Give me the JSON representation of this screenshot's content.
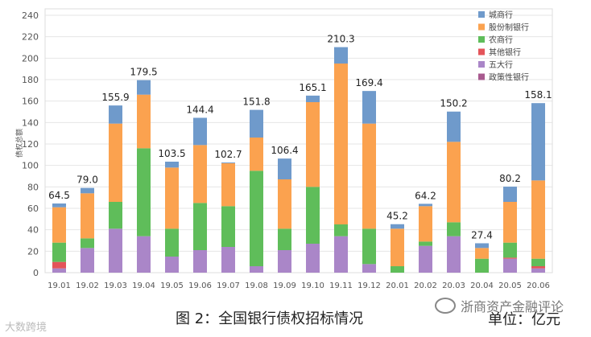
{
  "caption": "图 2：全国银行债权招标情况",
  "unit": "单位：亿元",
  "wechat_name": "浙商资产金融评论",
  "watermark": "大数跨境",
  "colors": {
    "城商行": "#6f9acb",
    "股份制银行": "#fba24f",
    "农商行": "#5fbd5a",
    "其他银行": "#e4545a",
    "五大行": "#aa86c8",
    "政策性银行": "#a85a8f"
  },
  "chart_data": {
    "type": "bar",
    "stacked": true,
    "title": "",
    "xlabel": "",
    "ylabel": "债权总额",
    "ylim": [
      0,
      240
    ],
    "yticks": [
      0,
      20,
      40,
      60,
      80,
      100,
      120,
      140,
      160,
      180,
      200,
      220,
      240
    ],
    "grid": true,
    "legend_position": "top-right",
    "categories": [
      "19.01",
      "19.02",
      "19.03",
      "19.04",
      "19.05",
      "19.06",
      "19.07",
      "19.08",
      "19.09",
      "19.10",
      "19.11",
      "19.12",
      "20.01",
      "20.02",
      "20.03",
      "20.04",
      "20.05",
      "20.06"
    ],
    "totals": [
      64.5,
      79.0,
      155.9,
      179.5,
      103.5,
      144.4,
      102.7,
      151.8,
      106.4,
      165.1,
      210.3,
      169.4,
      45.2,
      64.2,
      150.2,
      27.4,
      80.2,
      158.1
    ],
    "totals_labels": [
      "64.5",
      "79.0",
      "155.9",
      "179.5",
      "103.5",
      "144.4",
      "102.7",
      "151.8",
      "106.4",
      "165.1",
      "210.3",
      "169.4",
      "45.2",
      "64.2",
      "150.2",
      "27.4",
      "80.2",
      "158.1"
    ],
    "series": [
      {
        "name": "政策性银行",
        "values": [
          0,
          0,
          0,
          0,
          0,
          0,
          0,
          0,
          0,
          0,
          0,
          0,
          0,
          0,
          0,
          0,
          0,
          0
        ]
      },
      {
        "name": "五大行",
        "values": [
          4,
          23,
          41,
          34,
          15,
          21,
          24,
          6,
          21,
          27,
          34,
          8,
          0,
          25,
          34,
          0,
          13,
          4
        ]
      },
      {
        "name": "其他银行",
        "values": [
          6,
          0,
          0,
          0,
          0,
          0,
          0,
          0,
          0,
          0,
          0,
          0,
          0,
          0,
          0,
          0,
          1,
          2
        ]
      },
      {
        "name": "农商行",
        "values": [
          18,
          9,
          25,
          82,
          26,
          44,
          38,
          89,
          20,
          53,
          11,
          33,
          6,
          4,
          13,
          13,
          14,
          7
        ]
      },
      {
        "name": "股份制银行",
        "values": [
          33,
          42,
          73,
          50,
          57,
          54,
          40,
          31,
          46,
          79,
          150,
          98,
          35,
          33,
          75,
          10,
          38,
          73
        ]
      },
      {
        "name": "城商行",
        "values": [
          3.5,
          5,
          16.9,
          13.5,
          5.5,
          25.4,
          0.7,
          25.8,
          19.4,
          6.1,
          15.3,
          30.4,
          4.2,
          2.2,
          28.2,
          4.4,
          14.2,
          72.1
        ]
      }
    ],
    "legend": [
      "城商行",
      "股份制银行",
      "农商行",
      "其他银行",
      "五大行",
      "政策性银行"
    ]
  }
}
